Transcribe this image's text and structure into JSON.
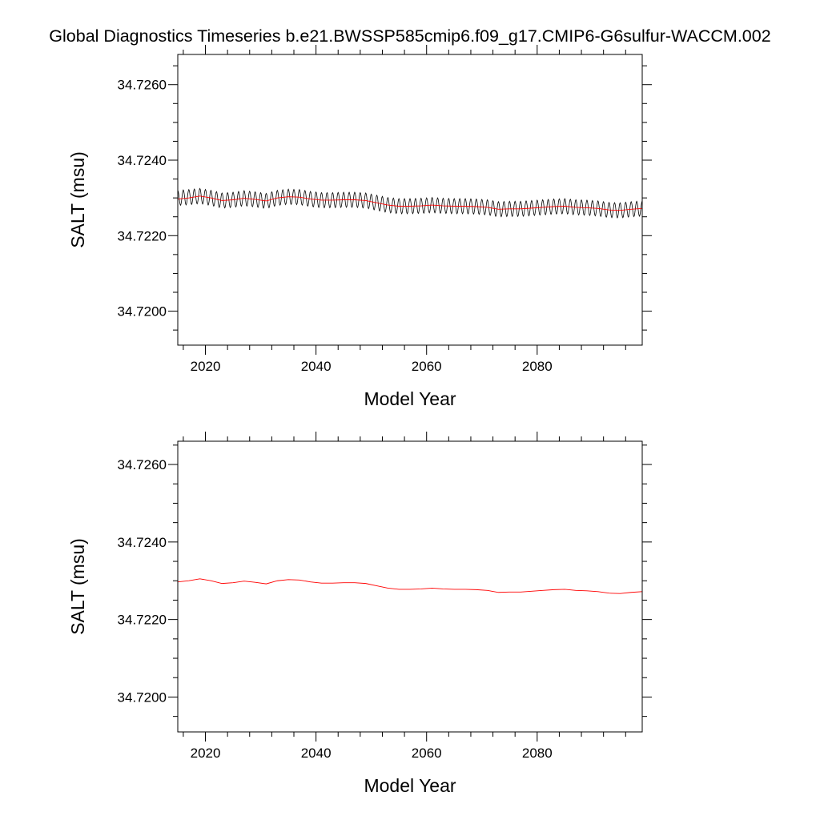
{
  "title": "Global Diagnostics Timeseries b.e21.BWSSP585cmip6.f09_g17.CMIP6-G6sulfur-WACCM.002",
  "colors": {
    "monthly": "#000000",
    "annual": "#ff0000",
    "frame": "#000000",
    "background": "#ffffff"
  },
  "chart_data": [
    {
      "type": "line",
      "panel": "top",
      "xlabel": "Model Year",
      "ylabel": "SALT (msu)",
      "xlim": [
        2015,
        2099
      ],
      "ylim": [
        34.7191,
        34.7268
      ],
      "xticks": [
        2020,
        2040,
        2060,
        2080
      ],
      "xtick_labels": [
        "2020",
        "2040",
        "2060",
        "2080"
      ],
      "yticks": [
        34.72,
        34.722,
        34.724,
        34.726
      ],
      "ytick_labels": [
        "34.7200",
        "34.7220",
        "34.7240",
        "34.7260"
      ],
      "grid": false,
      "legend": null,
      "seasonal_amplitude": 0.0002,
      "series": [
        {
          "role": "monthly",
          "color": "#000000",
          "x": [
            2015,
            2017,
            2019,
            2021,
            2023,
            2025,
            2027,
            2029,
            2031,
            2033,
            2035,
            2037,
            2039,
            2041,
            2043,
            2045,
            2047,
            2049,
            2051,
            2053,
            2055,
            2057,
            2059,
            2061,
            2063,
            2065,
            2067,
            2069,
            2071,
            2073,
            2075,
            2077,
            2079,
            2081,
            2083,
            2085,
            2087,
            2089,
            2091,
            2093,
            2095,
            2097,
            2099
          ],
          "y": [
            34.723,
            34.72302,
            34.72305,
            34.723,
            34.72293,
            34.72295,
            34.72299,
            34.72296,
            34.72292,
            34.723,
            34.72303,
            34.72302,
            34.72297,
            34.72294,
            34.72294,
            34.72295,
            34.72295,
            34.72293,
            34.72287,
            34.72281,
            34.72278,
            34.72278,
            34.72279,
            34.72281,
            34.72279,
            34.72278,
            34.72278,
            34.72277,
            34.72275,
            34.7227,
            34.72271,
            34.72271,
            34.72273,
            34.72275,
            34.72277,
            34.72278,
            34.72275,
            34.72274,
            34.72272,
            34.72268,
            34.72267,
            34.7227,
            34.72272
          ]
        },
        {
          "role": "annual",
          "color": "#ff0000",
          "x": [
            2015,
            2017,
            2019,
            2021,
            2023,
            2025,
            2027,
            2029,
            2031,
            2033,
            2035,
            2037,
            2039,
            2041,
            2043,
            2045,
            2047,
            2049,
            2051,
            2053,
            2055,
            2057,
            2059,
            2061,
            2063,
            2065,
            2067,
            2069,
            2071,
            2073,
            2075,
            2077,
            2079,
            2081,
            2083,
            2085,
            2087,
            2089,
            2091,
            2093,
            2095,
            2097,
            2099
          ],
          "y": [
            34.72297,
            34.723,
            34.72305,
            34.723,
            34.72293,
            34.72295,
            34.72299,
            34.72296,
            34.72292,
            34.723,
            34.72303,
            34.72302,
            34.72297,
            34.72294,
            34.72294,
            34.72295,
            34.72295,
            34.72293,
            34.72287,
            34.72281,
            34.72278,
            34.72278,
            34.72279,
            34.72281,
            34.72279,
            34.72278,
            34.72278,
            34.72277,
            34.72275,
            34.7227,
            34.72271,
            34.72271,
            34.72273,
            34.72275,
            34.72277,
            34.72278,
            34.72275,
            34.72274,
            34.72272,
            34.72268,
            34.72267,
            34.7227,
            34.72272
          ]
        }
      ]
    },
    {
      "type": "line",
      "panel": "bottom",
      "xlabel": "Model Year",
      "ylabel": "SALT (msu)",
      "xlim": [
        2015,
        2099
      ],
      "ylim": [
        34.7191,
        34.7266
      ],
      "xticks": [
        2020,
        2040,
        2060,
        2080
      ],
      "xtick_labels": [
        "2020",
        "2040",
        "2060",
        "2080"
      ],
      "yticks": [
        34.72,
        34.722,
        34.724,
        34.726
      ],
      "ytick_labels": [
        "34.7200",
        "34.7220",
        "34.7240",
        "34.7260"
      ],
      "grid": false,
      "legend": null,
      "series": [
        {
          "role": "annual",
          "color": "#ff0000",
          "x": [
            2015,
            2017,
            2019,
            2021,
            2023,
            2025,
            2027,
            2029,
            2031,
            2033,
            2035,
            2037,
            2039,
            2041,
            2043,
            2045,
            2047,
            2049,
            2051,
            2053,
            2055,
            2057,
            2059,
            2061,
            2063,
            2065,
            2067,
            2069,
            2071,
            2073,
            2075,
            2077,
            2079,
            2081,
            2083,
            2085,
            2087,
            2089,
            2091,
            2093,
            2095,
            2097,
            2099
          ],
          "y": [
            34.72297,
            34.723,
            34.72305,
            34.723,
            34.72293,
            34.72295,
            34.72299,
            34.72296,
            34.72292,
            34.723,
            34.72303,
            34.72302,
            34.72297,
            34.72294,
            34.72294,
            34.72295,
            34.72295,
            34.72293,
            34.72287,
            34.72281,
            34.72278,
            34.72278,
            34.72279,
            34.72281,
            34.72279,
            34.72278,
            34.72278,
            34.72277,
            34.72275,
            34.7227,
            34.72271,
            34.72271,
            34.72273,
            34.72275,
            34.72277,
            34.72278,
            34.72275,
            34.72274,
            34.72272,
            34.72268,
            34.72267,
            34.7227,
            34.72272
          ]
        }
      ]
    }
  ]
}
